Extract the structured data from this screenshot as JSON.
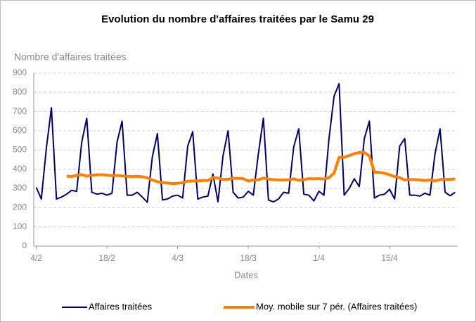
{
  "chart_data": {
    "type": "line",
    "title": "Evolution du nombre d'affaires traitées par le Samu 29",
    "y_label": "Nombre d'affaires traitées",
    "x_label": "Dates",
    "categories": [
      "4/2",
      null,
      null,
      null,
      null,
      null,
      null,
      null,
      null,
      null,
      null,
      null,
      null,
      null,
      "18/2",
      null,
      null,
      null,
      null,
      null,
      null,
      null,
      null,
      null,
      null,
      null,
      null,
      null,
      "4/3",
      null,
      null,
      null,
      null,
      null,
      null,
      null,
      null,
      null,
      null,
      null,
      null,
      null,
      "18/3",
      null,
      null,
      null,
      null,
      null,
      null,
      null,
      null,
      null,
      null,
      null,
      null,
      null,
      "1/4",
      null,
      null,
      null,
      null,
      null,
      null,
      null,
      null,
      null,
      null,
      null,
      null,
      null,
      "15/4",
      null,
      null,
      null,
      null,
      null,
      null,
      null,
      null,
      null,
      null,
      null,
      null,
      null
    ],
    "series": [
      {
        "name": "Affaires traitées",
        "color": "#000066",
        "width": 2,
        "values": [
          305,
          245,
          510,
          720,
          245,
          255,
          270,
          290,
          285,
          540,
          665,
          280,
          270,
          275,
          265,
          275,
          540,
          650,
          265,
          265,
          280,
          255,
          228,
          465,
          585,
          240,
          245,
          260,
          265,
          250,
          520,
          595,
          245,
          255,
          260,
          375,
          230,
          470,
          600,
          280,
          250,
          255,
          285,
          265,
          480,
          665,
          240,
          230,
          245,
          280,
          275,
          515,
          610,
          270,
          265,
          235,
          285,
          265,
          560,
          780,
          845,
          265,
          300,
          350,
          310,
          560,
          650,
          250,
          265,
          270,
          295,
          245,
          520,
          560,
          265,
          265,
          260,
          275,
          265,
          480,
          610,
          280,
          262,
          280
        ]
      },
      {
        "name": "Moy. mobile sur 7 pér. (Affaires traitées)",
        "color": "#ff7f00",
        "width": 4,
        "values": [
          null,
          null,
          null,
          null,
          null,
          null,
          364,
          362,
          368,
          372,
          364,
          369,
          371,
          372,
          369,
          367,
          367,
          365,
          363,
          362,
          363,
          361,
          355,
          344,
          335,
          331,
          328,
          325,
          327,
          330,
          338,
          339,
          340,
          341,
          341,
          357,
          354,
          347,
          348,
          353,
          352,
          351,
          339,
          344,
          345,
          354,
          349,
          346,
          344,
          344,
          345,
          350,
          342,
          346,
          351,
          350,
          351,
          349,
          356,
          380,
          462,
          462,
          471,
          481,
          487,
          487,
          469,
          384,
          384,
          379,
          371,
          362,
          356,
          344,
          346,
          346,
          344,
          341,
          344,
          339,
          346,
          348,
          347,
          350
        ]
      }
    ],
    "ylim": [
      0,
      900
    ],
    "yticks": [
      0,
      100,
      200,
      300,
      400,
      500,
      600,
      700,
      800,
      900
    ],
    "grid": true
  }
}
